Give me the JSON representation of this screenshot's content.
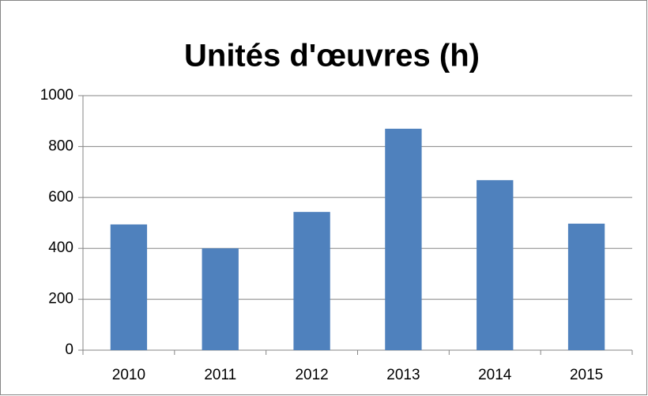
{
  "chart_data": {
    "type": "bar",
    "title": "Unités d'œuvres (h)",
    "categories": [
      "2010",
      "2011",
      "2012",
      "2013",
      "2014",
      "2015"
    ],
    "values": [
      494,
      400,
      543,
      870,
      668,
      497
    ],
    "color": "#4f81bd",
    "ylim": [
      0,
      1000
    ],
    "yticks": [
      0,
      200,
      400,
      600,
      800,
      1000
    ],
    "grid": true
  }
}
